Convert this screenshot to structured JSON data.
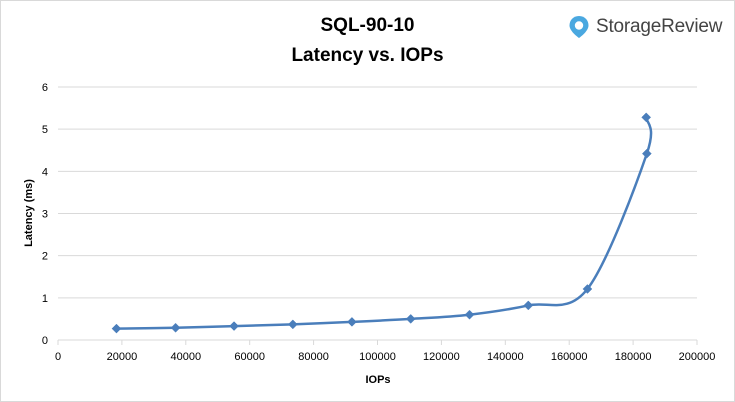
{
  "header": {
    "title": "SQL-90-10",
    "subtitle": "Latency vs. IOPs",
    "brand": "StorageReview",
    "brand_icon": "map-pin-logo-icon"
  },
  "colors": {
    "series": "#4a7ebb",
    "marker": "#4a7ebb",
    "grid": "#d9d9d9",
    "brand": "#4aa8e0"
  },
  "chart_data": {
    "type": "scatter",
    "title": "SQL-90-10 Latency vs. IOPs",
    "xlabel": "IOPs",
    "ylabel": "Latency (ms)",
    "xlim": [
      0,
      200000
    ],
    "ylim": [
      0,
      6
    ],
    "xticks": [
      0,
      20000,
      40000,
      60000,
      80000,
      100000,
      120000,
      140000,
      160000,
      180000,
      200000
    ],
    "yticks": [
      0,
      1,
      2,
      3,
      4,
      5,
      6
    ],
    "grid": "horizontal",
    "legend": "none",
    "smooth": true,
    "marker": "diamond",
    "series": [
      {
        "x": [
          18300,
          36800,
          55100,
          73500,
          92000,
          110400,
          128800,
          147200,
          165700,
          184300,
          184100
        ],
        "y": [
          0.27,
          0.29,
          0.33,
          0.37,
          0.43,
          0.5,
          0.6,
          0.82,
          1.21,
          4.42,
          5.28
        ]
      }
    ]
  }
}
